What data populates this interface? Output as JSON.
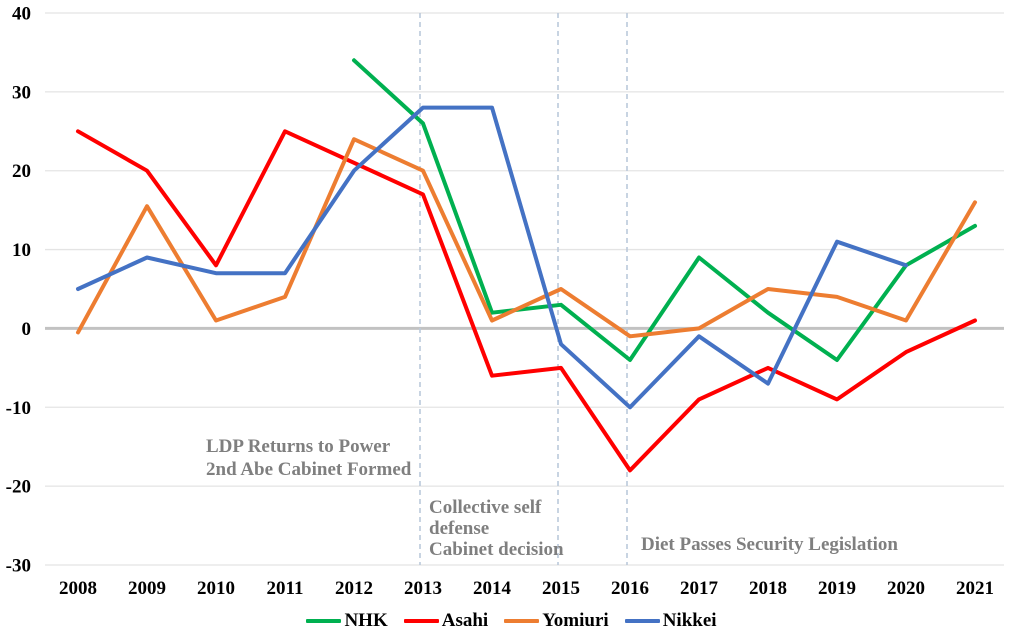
{
  "chart_data": {
    "type": "line",
    "title": "",
    "x_labels": [
      "2008",
      "2009",
      "2010",
      "2011",
      "2012",
      "2013",
      "2014",
      "2015",
      "2016",
      "2017",
      "2018",
      "2019",
      "2020",
      "2021"
    ],
    "y_ticks": [
      40,
      30,
      20,
      10,
      0,
      -10,
      -20,
      -30
    ],
    "ylim": [
      -30,
      40
    ],
    "grid": true,
    "zero_line": true,
    "legend_position": "bottom",
    "series": [
      {
        "name": "NHK",
        "color": "#00B050",
        "values": [
          null,
          null,
          null,
          null,
          34,
          26,
          2,
          3,
          -4,
          9,
          2,
          -4,
          8,
          13
        ]
      },
      {
        "name": "Asahi",
        "color": "#FF0000",
        "values": [
          25,
          20,
          8,
          25,
          21,
          17,
          -6,
          -5,
          -18,
          -9,
          -5,
          -9,
          -3,
          1
        ]
      },
      {
        "name": "Yomiuri",
        "color": "#ED7D31",
        "values": [
          -0.5,
          15.5,
          1,
          4,
          24,
          20,
          1,
          5,
          -1,
          0,
          5,
          4,
          1,
          16
        ]
      },
      {
        "name": "Nikkei",
        "color": "#4472C4",
        "values": [
          5,
          9,
          7,
          7,
          20,
          28,
          28,
          -2,
          -10,
          -1,
          -7,
          11,
          8,
          null
        ]
      }
    ],
    "event_lines": [
      {
        "x_label": "2013"
      },
      {
        "x_label": "2015"
      },
      {
        "x_label": "2016"
      }
    ],
    "annotations": [
      {
        "id": "ldp",
        "lines": [
          "LDP Returns to Power",
          "2nd Abe Cabinet Formed"
        ],
        "color": "#7f7f7f"
      },
      {
        "id": "collective",
        "lines": [
          "Collective self",
          "defense",
          "Cabinet decision"
        ],
        "color": "#7f7f7f"
      },
      {
        "id": "diet",
        "lines": [
          "Diet Passes Security Legislation"
        ],
        "color": "#7f7f7f"
      }
    ],
    "colors": {
      "gridline": "#E4E4E4",
      "zero_line": "#C2C2C2",
      "event_line": "#BBC9DB",
      "axis_text": "#000000",
      "annotation_text": "#7f7f7f"
    }
  }
}
